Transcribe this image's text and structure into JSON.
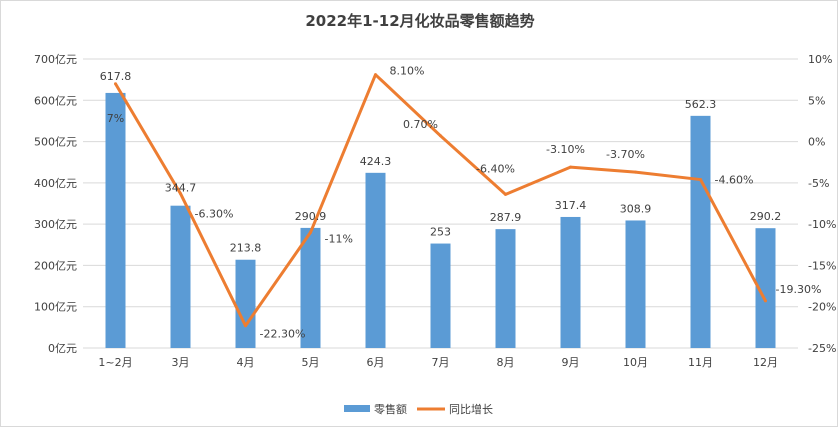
{
  "chart_data": {
    "type": "bar+line",
    "title": "2022年1-12月化妆品零售额趋势",
    "categories": [
      "1~2月",
      "3月",
      "4月",
      "5月",
      "6月",
      "7月",
      "8月",
      "9月",
      "10月",
      "11月",
      "12月"
    ],
    "series": [
      {
        "name": "零售额",
        "type": "bar",
        "axis": "left",
        "color": "#5b9bd5",
        "values": [
          617.8,
          344.7,
          213.8,
          290.9,
          424.3,
          253,
          287.9,
          317.4,
          308.9,
          562.3,
          290.2
        ],
        "labels": [
          "617.8",
          "344.7",
          "213.8",
          "290.9",
          "424.3",
          "253",
          "287.9",
          "317.4",
          "308.9",
          "562.3",
          "290.2"
        ]
      },
      {
        "name": "同比增长",
        "type": "line",
        "axis": "right",
        "color": "#ed7d31",
        "values": [
          7,
          -6.3,
          -22.3,
          -11,
          8.1,
          0.7,
          -6.4,
          -3.1,
          -3.7,
          -4.6,
          -19.3
        ],
        "labels": [
          "7%",
          "-6.30%",
          "-22.30%",
          "-11%",
          "8.10%",
          "0.70%",
          "-6.40%",
          "-3.10%",
          "-3.70%",
          "-4.60%",
          "-19.30%"
        ]
      }
    ],
    "y_left": {
      "range": [
        0,
        700
      ],
      "ticks": [
        "0亿元",
        "100亿元",
        "200亿元",
        "300亿元",
        "400亿元",
        "500亿元",
        "600亿元",
        "700亿元"
      ]
    },
    "y_right": {
      "range": [
        -25,
        10
      ],
      "ticks": [
        "-25%",
        "-20%",
        "-15%",
        "-10%",
        "-5%",
        "0%",
        "5%",
        "10%"
      ]
    },
    "grid": true,
    "legend": "bottom"
  }
}
